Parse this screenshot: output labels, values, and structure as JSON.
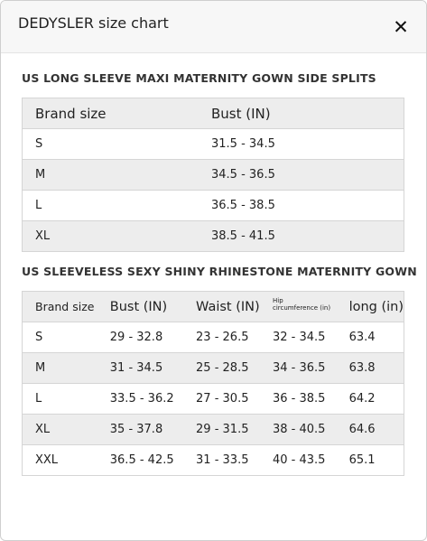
{
  "modal": {
    "title": "DEDYSLER size chart",
    "close_glyph": "✕",
    "close_icon": "close-icon"
  },
  "table1": {
    "title": "US LONG SLEEVE MAXI MATERNITY GOWN SIDE SPLITS",
    "headers": [
      "Brand size",
      "Bust (IN)"
    ],
    "rows": [
      [
        "S",
        "31.5 - 34.5"
      ],
      [
        "M",
        "34.5 - 36.5"
      ],
      [
        "L",
        "36.5 - 38.5"
      ],
      [
        "XL",
        "38.5 - 41.5"
      ]
    ]
  },
  "table2": {
    "title": "US SLEEVELESS SEXY SHINY RHINESTONE MATERNITY GOWN",
    "headers": [
      "Brand size",
      "Bust (IN)",
      "Waist (IN)",
      "Hip circumference (in)",
      "long (in)"
    ],
    "hip_header_lines": [
      "Hip",
      "circumference (in)"
    ],
    "rows": [
      [
        "S",
        "29 - 32.8",
        "23 - 26.5",
        "32 - 34.5",
        "63.4"
      ],
      [
        "M",
        "31 - 34.5",
        "25 - 28.5",
        "34 - 36.5",
        "63.8"
      ],
      [
        "L",
        "33.5 - 36.2",
        "27 - 30.5",
        "36 - 38.5",
        "64.2"
      ],
      [
        "XL",
        "35 - 37.8",
        "29 - 31.5",
        "38 - 40.5",
        "64.6"
      ],
      [
        "XXL",
        "36.5 - 42.5",
        "31 - 33.5",
        "40 - 43.5",
        "65.1"
      ]
    ]
  }
}
